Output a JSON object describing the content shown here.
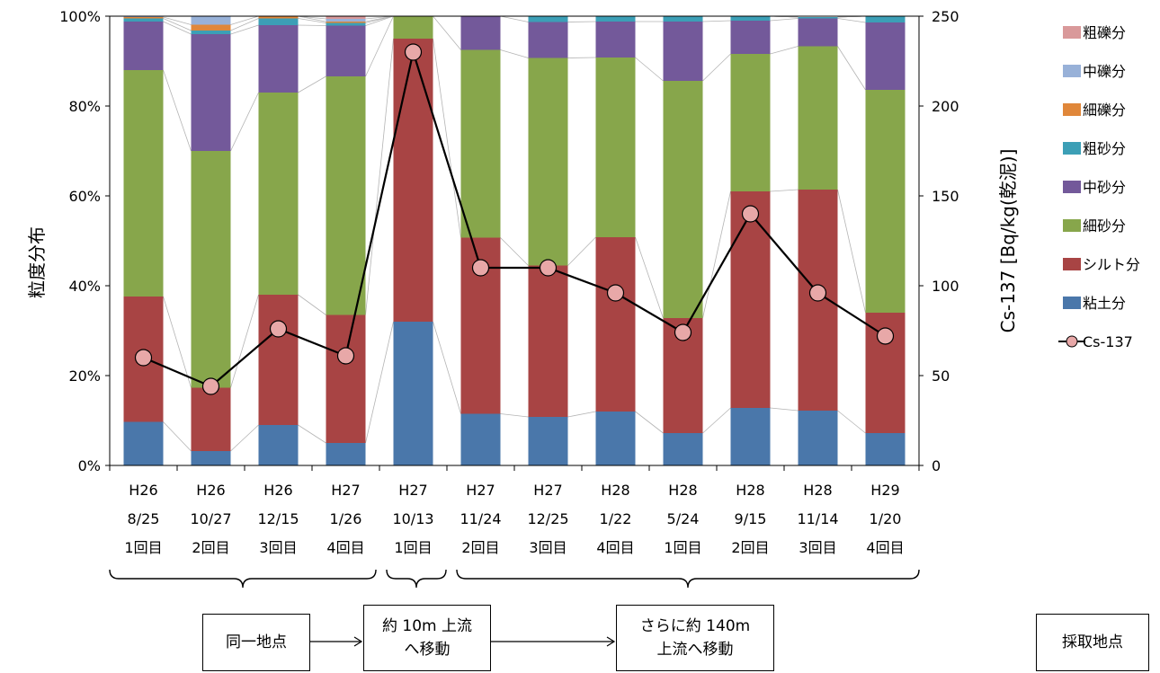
{
  "chart_data": {
    "type": "bar",
    "stacked": true,
    "categories": [
      [
        "H26",
        "8/25",
        "1回目"
      ],
      [
        "H26",
        "10/27",
        "2回目"
      ],
      [
        "H26",
        "12/15",
        "3回目"
      ],
      [
        "H27",
        "1/26",
        "4回目"
      ],
      [
        "H27",
        "10/13",
        "1回目"
      ],
      [
        "H27",
        "11/24",
        "2回目"
      ],
      [
        "H27",
        "12/25",
        "3回目"
      ],
      [
        "H28",
        "1/22",
        "4回目"
      ],
      [
        "H28",
        "5/24",
        "1回目"
      ],
      [
        "H28",
        "9/15",
        "2回目"
      ],
      [
        "H28",
        "11/14",
        "3回目"
      ],
      [
        "H29",
        "1/20",
        "4回目"
      ]
    ],
    "series": [
      {
        "name": "粘土分",
        "color": "#4a77aa",
        "values": [
          9.7,
          3.2,
          9.0,
          5.0,
          32.0,
          11.5,
          10.8,
          12.0,
          7.2,
          12.8,
          12.2,
          7.2
        ]
      },
      {
        "name": "シルト分",
        "color": "#a84444",
        "values": [
          27.9,
          14.1,
          29.0,
          28.5,
          63.0,
          39.2,
          33.7,
          38.8,
          25.6,
          48.2,
          49.2,
          26.8
        ]
      },
      {
        "name": "細砂分",
        "color": "#87a64b",
        "values": [
          50.4,
          52.7,
          45.0,
          53.1,
          5.0,
          41.8,
          46.2,
          40.0,
          52.8,
          30.6,
          31.9,
          49.6
        ]
      },
      {
        "name": "中砂分",
        "color": "#73599a",
        "values": [
          10.8,
          26.0,
          15.0,
          11.3,
          0,
          7.5,
          8.0,
          8.0,
          13.2,
          7.4,
          6.2,
          15.0
        ]
      },
      {
        "name": "粗砂分",
        "color": "#3c9fb6",
        "values": [
          0.7,
          0.8,
          1.5,
          0.6,
          0,
          0,
          1.3,
          1.2,
          1.3,
          1.0,
          0.3,
          1.4
        ]
      },
      {
        "name": "細礫分",
        "color": "#e0873a",
        "values": [
          0.3,
          1.3,
          0.5,
          0.3,
          0,
          0,
          0,
          0,
          0,
          0,
          0,
          0
        ]
      },
      {
        "name": "中礫分",
        "color": "#98b1d8",
        "values": [
          0.2,
          1.9,
          0,
          0.6,
          0,
          0,
          0,
          0,
          0,
          0,
          0,
          0
        ]
      },
      {
        "name": "粗礫分",
        "color": "#d9999a",
        "values": [
          0,
          0,
          0,
          0.6,
          0,
          0,
          0,
          0,
          0,
          0,
          0,
          0
        ]
      }
    ],
    "line_series": {
      "name": "Cs-137",
      "axis": "right",
      "line_color": "#000000",
      "marker_fill": "#e8a8a8",
      "values": [
        60,
        44,
        76,
        61,
        230,
        110,
        110,
        96,
        74,
        140,
        96,
        72
      ]
    },
    "ylabel_left": "粒度分布",
    "ylabel_right": "Cs-137 [Bq/kg(乾泥)]",
    "ylim_left": [
      0,
      100
    ],
    "ylim_right": [
      0,
      250
    ],
    "yticks_left": [
      "0%",
      "20%",
      "40%",
      "60%",
      "80%",
      "100%"
    ],
    "yticks_right": [
      "0",
      "50",
      "100",
      "150",
      "200",
      "250"
    ],
    "legend_placement": "right",
    "legend_order": [
      "粗礫分",
      "中礫分",
      "細礫分",
      "粗砂分",
      "中砂分",
      "細砂分",
      "シルト分",
      "粘土分",
      "Cs-137"
    ]
  },
  "annotations": {
    "group_1": "同一地点",
    "group_2": "約 10m 上流\nへ移動",
    "group_3": "さらに約 140m\n上流へ移動",
    "legend_box": "採取地点"
  }
}
